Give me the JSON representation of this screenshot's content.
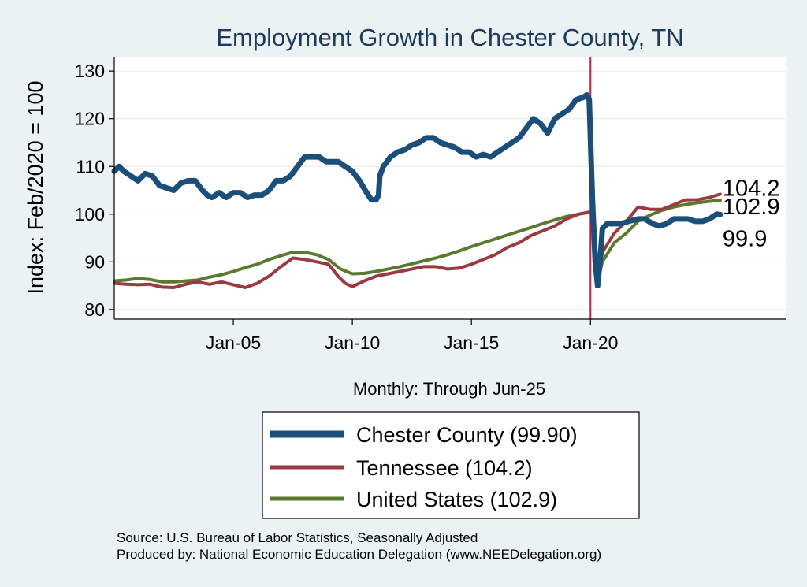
{
  "chart_data": {
    "type": "line",
    "title": "Employment Growth in Chester  County, TN",
    "ylabel": "Index: Feb/2020 = 100",
    "xlabel": "Monthly: Through Jun-25",
    "xlim": [
      2000.0,
      2028.2
    ],
    "ylim": [
      78,
      133
    ],
    "yticks": [
      80,
      90,
      100,
      110,
      120,
      130
    ],
    "xticks": [
      {
        "label": "Jan-05",
        "value": 2005.0
      },
      {
        "label": "Jan-10",
        "value": 2010.0
      },
      {
        "label": "Jan-15",
        "value": 2015.0
      },
      {
        "label": "Jan-20",
        "value": 2020.0
      }
    ],
    "vline": {
      "x": 2020.0,
      "color": "#c0234a"
    },
    "grid": true,
    "series": [
      {
        "name": "Chester  County",
        "legend_label": "Chester  County (99.90)",
        "end_label": "99.9",
        "color": "#1b4f7a",
        "width": 7,
        "points": [
          [
            2000.0,
            109
          ],
          [
            2000.2,
            110
          ],
          [
            2000.4,
            109
          ],
          [
            2000.7,
            108
          ],
          [
            2001.0,
            107
          ],
          [
            2001.3,
            108.5
          ],
          [
            2001.6,
            108
          ],
          [
            2001.9,
            106
          ],
          [
            2002.2,
            105.5
          ],
          [
            2002.5,
            105
          ],
          [
            2002.8,
            106.5
          ],
          [
            2003.1,
            107
          ],
          [
            2003.4,
            107
          ],
          [
            2003.7,
            105
          ],
          [
            2003.9,
            104
          ],
          [
            2004.1,
            103.5
          ],
          [
            2004.4,
            104.5
          ],
          [
            2004.7,
            103.5
          ],
          [
            2005.0,
            104.5
          ],
          [
            2005.3,
            104.5
          ],
          [
            2005.6,
            103.5
          ],
          [
            2005.9,
            104
          ],
          [
            2006.2,
            104
          ],
          [
            2006.5,
            105
          ],
          [
            2006.8,
            107
          ],
          [
            2007.1,
            107
          ],
          [
            2007.4,
            108
          ],
          [
            2007.7,
            110
          ],
          [
            2008.0,
            112
          ],
          [
            2008.3,
            112
          ],
          [
            2008.6,
            112
          ],
          [
            2008.9,
            111
          ],
          [
            2009.1,
            111
          ],
          [
            2009.4,
            111
          ],
          [
            2009.7,
            110
          ],
          [
            2010.0,
            109
          ],
          [
            2010.3,
            107
          ],
          [
            2010.6,
            104.5
          ],
          [
            2010.8,
            103
          ],
          [
            2011.0,
            103
          ],
          [
            2011.1,
            104
          ],
          [
            2011.15,
            108
          ],
          [
            2011.3,
            110
          ],
          [
            2011.6,
            112
          ],
          [
            2011.9,
            113
          ],
          [
            2012.2,
            113.5
          ],
          [
            2012.5,
            114.5
          ],
          [
            2012.8,
            115
          ],
          [
            2013.1,
            116
          ],
          [
            2013.4,
            116
          ],
          [
            2013.7,
            115
          ],
          [
            2014.0,
            114.5
          ],
          [
            2014.3,
            114
          ],
          [
            2014.6,
            113
          ],
          [
            2014.9,
            113
          ],
          [
            2015.2,
            112
          ],
          [
            2015.5,
            112.5
          ],
          [
            2015.8,
            112
          ],
          [
            2016.1,
            113
          ],
          [
            2016.4,
            114
          ],
          [
            2016.7,
            115
          ],
          [
            2017.0,
            116
          ],
          [
            2017.3,
            118
          ],
          [
            2017.6,
            120
          ],
          [
            2017.9,
            119
          ],
          [
            2018.2,
            117
          ],
          [
            2018.5,
            120
          ],
          [
            2018.8,
            121
          ],
          [
            2019.1,
            122
          ],
          [
            2019.4,
            124
          ],
          [
            2019.7,
            124.5
          ],
          [
            2019.85,
            125
          ],
          [
            2019.95,
            124
          ],
          [
            2020.08,
            103
          ],
          [
            2020.2,
            90
          ],
          [
            2020.3,
            85
          ],
          [
            2020.4,
            90
          ],
          [
            2020.5,
            97
          ],
          [
            2020.7,
            98
          ],
          [
            2021.0,
            98
          ],
          [
            2021.3,
            98
          ],
          [
            2021.6,
            98.5
          ],
          [
            2022.0,
            99
          ],
          [
            2022.3,
            99
          ],
          [
            2022.6,
            98
          ],
          [
            2022.9,
            97.5
          ],
          [
            2023.2,
            98
          ],
          [
            2023.5,
            99
          ],
          [
            2023.8,
            99
          ],
          [
            2024.1,
            99
          ],
          [
            2024.4,
            98.5
          ],
          [
            2024.7,
            98.5
          ],
          [
            2025.0,
            99
          ],
          [
            2025.3,
            100
          ],
          [
            2025.45,
            99.9
          ]
        ]
      },
      {
        "name": "Tennessee",
        "legend_label": "Tennessee (104.2)",
        "end_label": "104.2",
        "color": "#9b3a40",
        "width": 4,
        "points": [
          [
            2000.0,
            85.5
          ],
          [
            2000.5,
            85.3
          ],
          [
            2001.0,
            85.2
          ],
          [
            2001.5,
            85.3
          ],
          [
            2002.0,
            84.7
          ],
          [
            2002.5,
            84.6
          ],
          [
            2003.0,
            85.3
          ],
          [
            2003.5,
            85.8
          ],
          [
            2004.0,
            85.3
          ],
          [
            2004.5,
            85.8
          ],
          [
            2005.0,
            85.2
          ],
          [
            2005.5,
            84.6
          ],
          [
            2006.0,
            85.5
          ],
          [
            2006.5,
            87
          ],
          [
            2007.0,
            89
          ],
          [
            2007.5,
            90.8
          ],
          [
            2008.0,
            90.5
          ],
          [
            2008.5,
            90
          ],
          [
            2009.0,
            89.5
          ],
          [
            2009.4,
            87
          ],
          [
            2009.7,
            85.5
          ],
          [
            2010.0,
            84.8
          ],
          [
            2010.5,
            86
          ],
          [
            2011.0,
            87
          ],
          [
            2011.5,
            87.5
          ],
          [
            2012.0,
            88
          ],
          [
            2012.5,
            88.5
          ],
          [
            2013.0,
            89
          ],
          [
            2013.5,
            89
          ],
          [
            2014.0,
            88.5
          ],
          [
            2014.5,
            88.7
          ],
          [
            2015.0,
            89.5
          ],
          [
            2015.5,
            90.5
          ],
          [
            2016.0,
            91.5
          ],
          [
            2016.5,
            93
          ],
          [
            2017.0,
            94
          ],
          [
            2017.5,
            95.5
          ],
          [
            2018.0,
            96.5
          ],
          [
            2018.5,
            97.5
          ],
          [
            2019.0,
            99
          ],
          [
            2019.5,
            100
          ],
          [
            2020.0,
            100.5
          ],
          [
            2020.15,
            98
          ],
          [
            2020.3,
            85
          ],
          [
            2020.5,
            92
          ],
          [
            2021.0,
            96
          ],
          [
            2021.5,
            98.5
          ],
          [
            2022.0,
            101.5
          ],
          [
            2022.5,
            101
          ],
          [
            2023.0,
            101
          ],
          [
            2023.5,
            102
          ],
          [
            2024.0,
            103
          ],
          [
            2024.5,
            103
          ],
          [
            2025.0,
            103.5
          ],
          [
            2025.45,
            104.2
          ]
        ]
      },
      {
        "name": "United States",
        "legend_label": "United States (102.9)",
        "end_label": "102.9",
        "color": "#5a7a2e",
        "width": 4,
        "points": [
          [
            2000.0,
            86
          ],
          [
            2000.5,
            86.2
          ],
          [
            2001.0,
            86.5
          ],
          [
            2001.5,
            86.3
          ],
          [
            2002.0,
            85.8
          ],
          [
            2002.5,
            85.8
          ],
          [
            2003.0,
            86
          ],
          [
            2003.5,
            86.2
          ],
          [
            2004.0,
            86.8
          ],
          [
            2004.5,
            87.3
          ],
          [
            2005.0,
            88
          ],
          [
            2005.5,
            88.8
          ],
          [
            2006.0,
            89.5
          ],
          [
            2006.5,
            90.5
          ],
          [
            2007.0,
            91.3
          ],
          [
            2007.5,
            92
          ],
          [
            2008.0,
            92
          ],
          [
            2008.5,
            91.5
          ],
          [
            2009.0,
            90.5
          ],
          [
            2009.5,
            88.5
          ],
          [
            2010.0,
            87.5
          ],
          [
            2010.5,
            87.6
          ],
          [
            2011.0,
            88
          ],
          [
            2011.5,
            88.5
          ],
          [
            2012.0,
            89
          ],
          [
            2012.5,
            89.6
          ],
          [
            2013.0,
            90.2
          ],
          [
            2013.5,
            90.8
          ],
          [
            2014.0,
            91.5
          ],
          [
            2014.5,
            92.3
          ],
          [
            2015.0,
            93.2
          ],
          [
            2015.5,
            94
          ],
          [
            2016.0,
            94.8
          ],
          [
            2016.5,
            95.6
          ],
          [
            2017.0,
            96.4
          ],
          [
            2017.5,
            97.2
          ],
          [
            2018.0,
            98
          ],
          [
            2018.5,
            98.8
          ],
          [
            2019.0,
            99.5
          ],
          [
            2019.5,
            100
          ],
          [
            2020.0,
            100.4
          ],
          [
            2020.15,
            99
          ],
          [
            2020.3,
            86
          ],
          [
            2020.5,
            90
          ],
          [
            2021.0,
            94
          ],
          [
            2021.5,
            96
          ],
          [
            2022.0,
            98.5
          ],
          [
            2022.5,
            99.8
          ],
          [
            2023.0,
            100.8
          ],
          [
            2023.5,
            101.5
          ],
          [
            2024.0,
            102
          ],
          [
            2024.5,
            102.4
          ],
          [
            2025.0,
            102.7
          ],
          [
            2025.45,
            102.9
          ]
        ]
      }
    ],
    "source_lines": [
      "Source: U.S. Bureau of Labor Statistics, Seasonally Adjusted",
      "Produced by: National Economic Education Delegation (www.NEEDelegation.org)"
    ]
  }
}
